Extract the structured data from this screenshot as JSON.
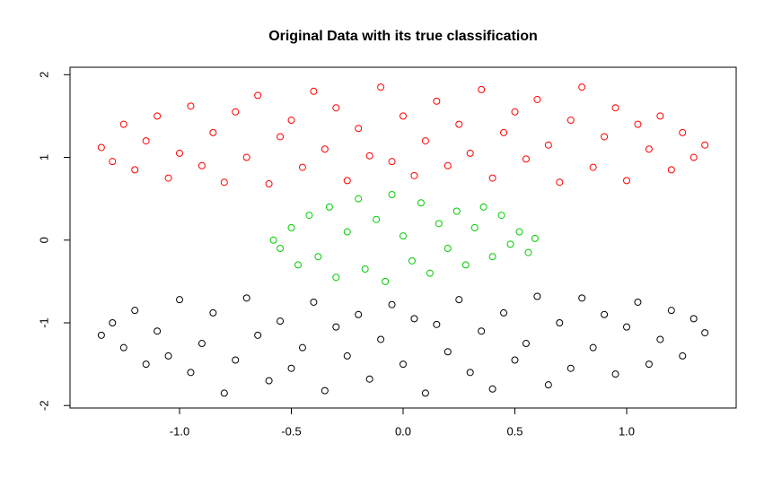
{
  "chart_data": {
    "type": "scatter",
    "title": "Original Data with its true classification",
    "xlim": [
      -1.49,
      1.49
    ],
    "ylim": [
      -2.03,
      2.09
    ],
    "xticks": [
      {
        "value": -1.0,
        "label": "-1.0"
      },
      -0.5,
      {
        "value": 0.0,
        "label": "0.0"
      },
      0.5,
      {
        "value": 1.0,
        "label": "1.0"
      }
    ],
    "yticks": [
      -2,
      -1,
      0,
      1,
      2
    ],
    "series": [
      {
        "color": "#ff0000",
        "x": [
          -1.35,
          -1.3,
          -1.25,
          -1.2,
          -1.15,
          -1.1,
          -1.05,
          -1.0,
          -0.95,
          -0.9,
          -0.85,
          -0.8,
          -0.75,
          -0.7,
          -0.65,
          -0.6,
          -0.55,
          -0.5,
          -0.45,
          -0.4,
          -0.35,
          -0.3,
          -0.25,
          -0.2,
          -0.15,
          -0.1,
          -0.05,
          0.0,
          0.05,
          0.1,
          0.15,
          0.2,
          0.25,
          0.3,
          0.35,
          0.4,
          0.45,
          0.5,
          0.55,
          0.6,
          0.65,
          0.7,
          0.75,
          0.8,
          0.85,
          0.9,
          0.95,
          1.0,
          1.05,
          1.1,
          1.15,
          1.2,
          1.25,
          1.3,
          1.35
        ],
        "y": [
          1.12,
          0.95,
          1.4,
          0.85,
          1.2,
          1.5,
          0.75,
          1.05,
          1.62,
          0.9,
          1.3,
          0.7,
          1.55,
          1.0,
          1.75,
          0.68,
          1.25,
          1.45,
          0.88,
          1.8,
          1.1,
          1.6,
          0.72,
          1.35,
          1.02,
          1.85,
          0.95,
          1.5,
          0.78,
          1.2,
          1.68,
          0.9,
          1.4,
          1.05,
          1.82,
          0.75,
          1.3,
          1.55,
          0.98,
          1.7,
          1.15,
          0.7,
          1.45,
          1.85,
          0.88,
          1.25,
          1.6,
          0.72,
          1.4,
          1.1,
          1.5,
          0.85,
          1.3,
          1.0,
          1.15
        ]
      },
      {
        "color": "#00cd00",
        "x": [
          -0.58,
          -0.55,
          -0.5,
          -0.47,
          -0.42,
          -0.38,
          -0.33,
          -0.3,
          -0.25,
          -0.2,
          -0.17,
          -0.12,
          -0.08,
          -0.05,
          0.0,
          0.04,
          0.08,
          0.12,
          0.16,
          0.2,
          0.24,
          0.28,
          0.32,
          0.36,
          0.4,
          0.44,
          0.48,
          0.52,
          0.56,
          0.59
        ],
        "y": [
          0.0,
          -0.1,
          0.15,
          -0.3,
          0.3,
          -0.2,
          0.4,
          -0.45,
          0.1,
          0.5,
          -0.35,
          0.25,
          -0.5,
          0.55,
          0.05,
          -0.25,
          0.45,
          -0.4,
          0.2,
          -0.1,
          0.35,
          -0.3,
          0.15,
          0.4,
          -0.2,
          0.3,
          -0.05,
          0.1,
          -0.15,
          0.02
        ]
      },
      {
        "color": "#000000",
        "x": [
          -1.35,
          -1.3,
          -1.25,
          -1.2,
          -1.15,
          -1.1,
          -1.05,
          -1.0,
          -0.95,
          -0.9,
          -0.85,
          -0.8,
          -0.75,
          -0.7,
          -0.65,
          -0.6,
          -0.55,
          -0.5,
          -0.45,
          -0.4,
          -0.35,
          -0.3,
          -0.25,
          -0.2,
          -0.15,
          -0.1,
          -0.05,
          0.0,
          0.05,
          0.1,
          0.15,
          0.2,
          0.25,
          0.3,
          0.35,
          0.4,
          0.45,
          0.5,
          0.55,
          0.6,
          0.65,
          0.7,
          0.75,
          0.8,
          0.85,
          0.9,
          0.95,
          1.0,
          1.05,
          1.1,
          1.15,
          1.2,
          1.25,
          1.3,
          1.35
        ],
        "y": [
          -1.15,
          -1.0,
          -1.3,
          -0.85,
          -1.5,
          -1.1,
          -1.4,
          -0.72,
          -1.6,
          -1.25,
          -0.88,
          -1.85,
          -1.45,
          -0.7,
          -1.15,
          -1.7,
          -0.98,
          -1.55,
          -1.3,
          -0.75,
          -1.82,
          -1.05,
          -1.4,
          -0.9,
          -1.68,
          -1.2,
          -0.78,
          -1.5,
          -0.95,
          -1.85,
          -1.02,
          -1.35,
          -0.72,
          -1.6,
          -1.1,
          -1.8,
          -0.88,
          -1.45,
          -1.25,
          -0.68,
          -1.75,
          -1.0,
          -1.55,
          -0.7,
          -1.3,
          -0.9,
          -1.62,
          -1.05,
          -0.75,
          -1.5,
          -1.2,
          -0.85,
          -1.4,
          -0.95,
          -1.12
        ]
      }
    ]
  }
}
